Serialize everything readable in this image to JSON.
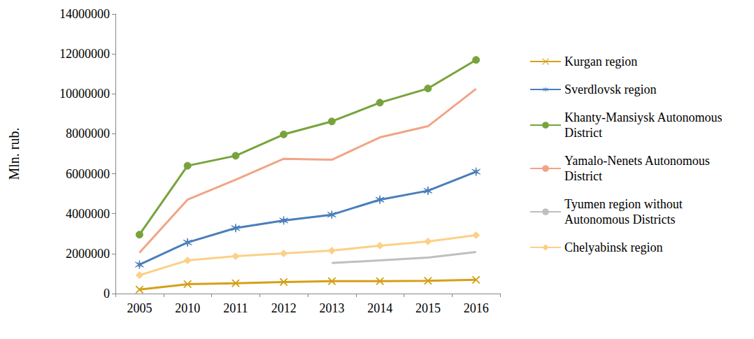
{
  "chart_data": {
    "type": "line",
    "y_label": "Mln. rub.",
    "categories": [
      "2005",
      "2010",
      "2011",
      "2012",
      "2013",
      "2014",
      "2015",
      "2016"
    ],
    "ylim": [
      0,
      14000000
    ],
    "yticks": [
      0,
      2000000,
      4000000,
      6000000,
      8000000,
      10000000,
      12000000,
      14000000
    ],
    "grid": false,
    "legend": "right",
    "series": [
      {
        "name": "Kurgan region",
        "color": "#d4a017",
        "marker": "x",
        "values": [
          200000,
          470000,
          520000,
          580000,
          620000,
          620000,
          640000,
          690000
        ]
      },
      {
        "name": "Sverdlovsk region",
        "color": "#4a7ebb",
        "marker": "star",
        "values": [
          1450000,
          2560000,
          3280000,
          3660000,
          3950000,
          4700000,
          5150000,
          6100000
        ]
      },
      {
        "name": "Khanty-Mansiysk Autonomous District",
        "color": "#77a33c",
        "marker": "circle",
        "values": [
          2950000,
          6400000,
          6900000,
          7970000,
          8620000,
          9560000,
          10270000,
          11700000
        ]
      },
      {
        "name": "Yamalo-Nenets Autonomous District",
        "color": "#f0a586",
        "marker": "none",
        "values": [
          2050000,
          4700000,
          5700000,
          6750000,
          6700000,
          7820000,
          8380000,
          10250000
        ]
      },
      {
        "name": "Tyumen region without Autonomous Districts",
        "color": "#bfbfbf",
        "marker": "none",
        "values": [
          null,
          null,
          null,
          null,
          1530000,
          1660000,
          1800000,
          2080000
        ]
      },
      {
        "name": "Chelyabinsk region",
        "color": "#fcd088",
        "marker": "diamond",
        "values": [
          920000,
          1660000,
          1870000,
          2010000,
          2150000,
          2400000,
          2610000,
          2920000
        ]
      }
    ]
  }
}
